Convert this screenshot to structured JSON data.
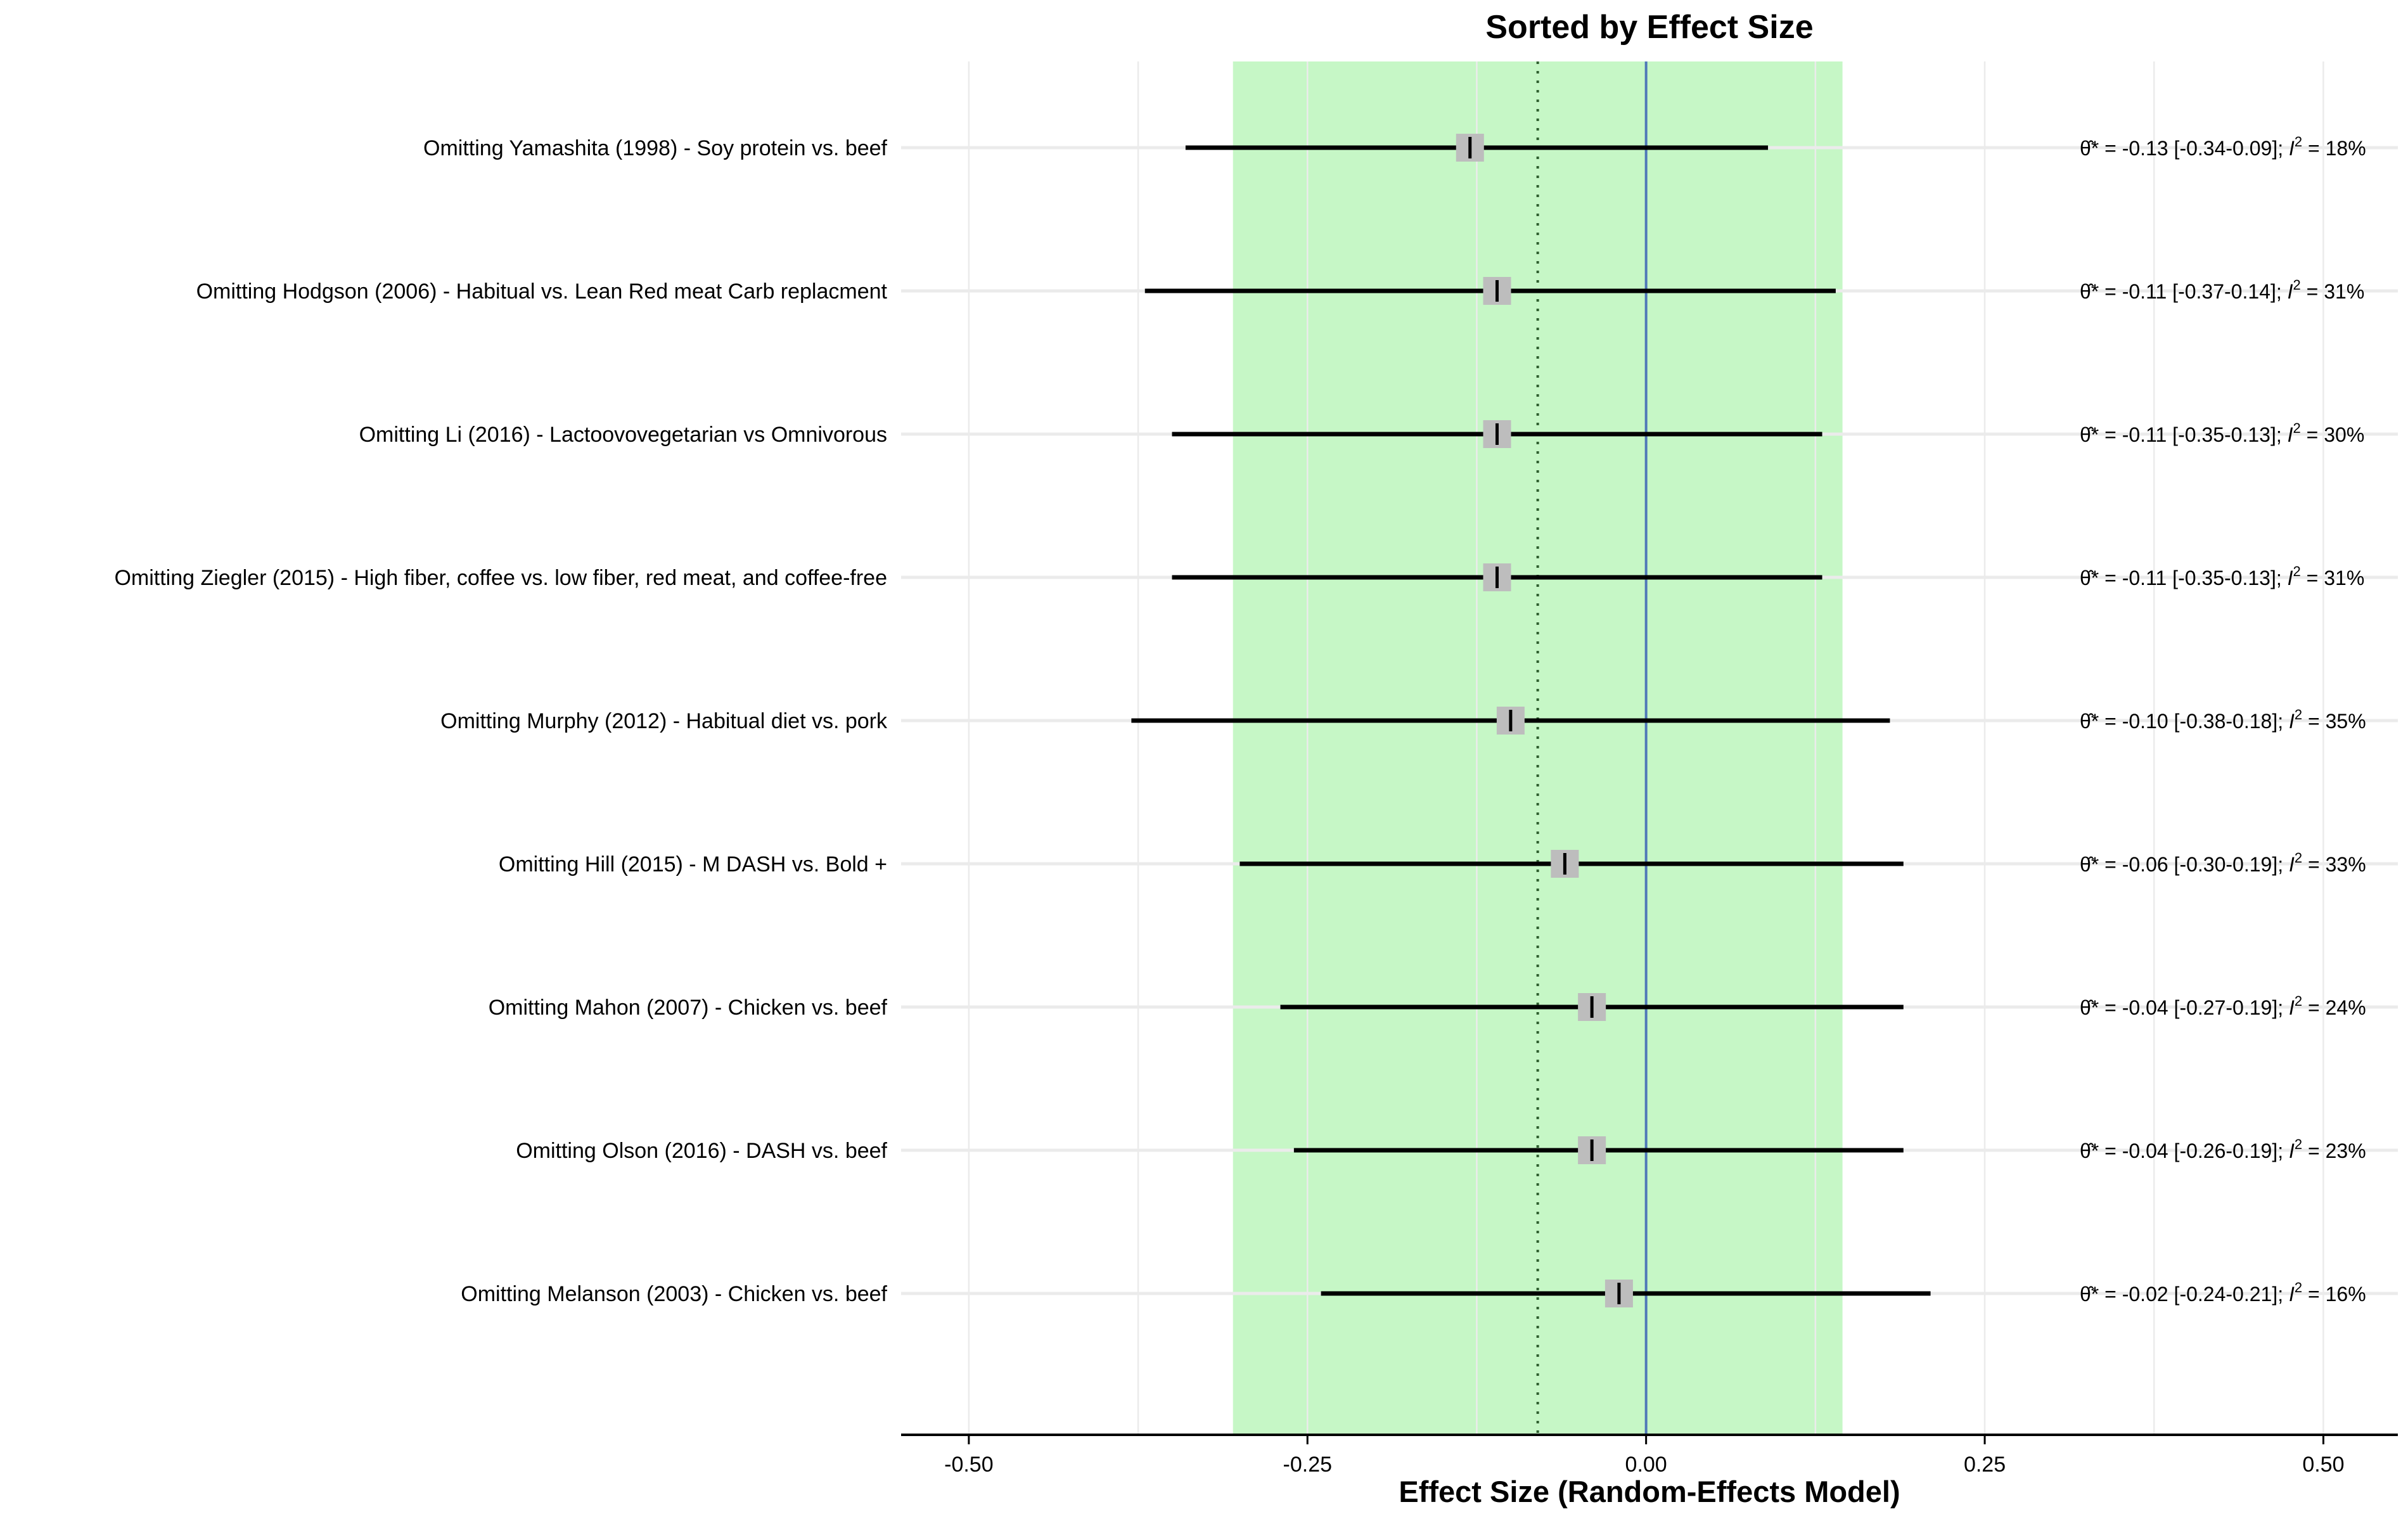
{
  "chart_data": {
    "type": "forest",
    "title": "Sorted by Effect Size",
    "xlabel": "Effect Size (Random-Effects Model)",
    "xlim": [
      -0.55,
      0.555
    ],
    "x_ticks": [
      -0.5,
      -0.25,
      0.0,
      0.25,
      0.5
    ],
    "x_tick_labels": [
      "-0.50",
      "-0.25",
      "0.00",
      "0.25",
      "0.50"
    ],
    "pooled_effect": -0.08,
    "pooled_ci": [
      -0.305,
      0.145
    ],
    "null_line": 0.0,
    "grid": true,
    "colors": {
      "ci_band": "#c6f7c6",
      "null_line": "#4f78b8",
      "point_box": "#bdbdbd",
      "ci_line": "#000000"
    },
    "studies": [
      {
        "label": "Omitting Yamashita (1998) - Soy protein vs. beef",
        "effect": -0.13,
        "ci_low": -0.34,
        "ci_high": 0.09,
        "annotation": "= -0.13 [-0.34-0.09];",
        "i2": "= 18%"
      },
      {
        "label": "Omitting Hodgson (2006) - Habitual vs. Lean Red meat Carb replacment",
        "effect": -0.11,
        "ci_low": -0.37,
        "ci_high": 0.14,
        "annotation": "= -0.11 [-0.37-0.14];",
        "i2": "= 31%"
      },
      {
        "label": "Omitting Li (2016) - Lactoovovegetarian vs Omnivorous",
        "effect": -0.11,
        "ci_low": -0.35,
        "ci_high": 0.13,
        "annotation": "= -0.11 [-0.35-0.13];",
        "i2": "= 30%"
      },
      {
        "label": "Omitting Ziegler (2015) - High fiber, coffee vs. low fiber, red meat, and coffee-free",
        "effect": -0.11,
        "ci_low": -0.35,
        "ci_high": 0.13,
        "annotation": "= -0.11 [-0.35-0.13];",
        "i2": "= 31%"
      },
      {
        "label": "Omitting Murphy (2012) - Habitual diet vs. pork",
        "effect": -0.1,
        "ci_low": -0.38,
        "ci_high": 0.18,
        "annotation": "= -0.10 [-0.38-0.18];",
        "i2": "= 35%"
      },
      {
        "label": "Omitting Hill (2015) - M DASH vs. Bold +",
        "effect": -0.06,
        "ci_low": -0.3,
        "ci_high": 0.19,
        "annotation": "= -0.06 [-0.30-0.19];",
        "i2": "= 33%"
      },
      {
        "label": "Omitting Mahon (2007) - Chicken vs. beef",
        "effect": -0.04,
        "ci_low": -0.27,
        "ci_high": 0.19,
        "annotation": "= -0.04 [-0.27-0.19];",
        "i2": "= 24%"
      },
      {
        "label": "Omitting Olson (2016) - DASH vs. beef",
        "effect": -0.04,
        "ci_low": -0.26,
        "ci_high": 0.19,
        "annotation": "= -0.04 [-0.26-0.19];",
        "i2": "= 23%"
      },
      {
        "label": "Omitting Melanson (2003) - Chicken vs. beef",
        "effect": -0.02,
        "ci_low": -0.24,
        "ci_high": 0.21,
        "annotation": "= -0.02 [-0.24-0.21];",
        "i2": "= 16%"
      }
    ]
  }
}
